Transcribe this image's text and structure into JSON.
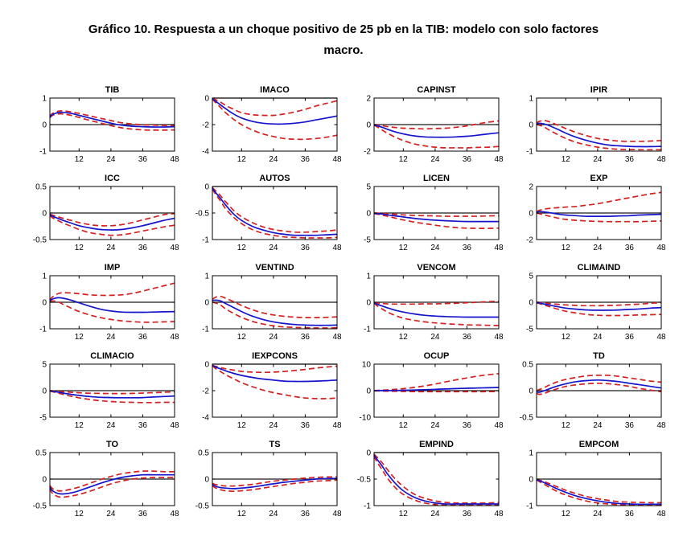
{
  "title": {
    "line1": "Gráfico 10. Respuesta a un choque positivo de 25 pb en la TIB: modelo con solo factores",
    "line2": "macro."
  },
  "colors": {
    "response_line": "#1414cc",
    "confidence_band": "#d42020",
    "zero_line": "#1a1a1a",
    "frame": "#000000",
    "background": "#ffffff"
  },
  "axes": {
    "x_range": [
      1,
      48
    ],
    "x_ticks": [
      12,
      24,
      36,
      48
    ],
    "x_samples": [
      1,
      2,
      4,
      6,
      9,
      12,
      16,
      20,
      24,
      28,
      32,
      36,
      40,
      44,
      48
    ]
  },
  "chart_data": [
    {
      "type": "line",
      "title": "TIB",
      "ylim": [
        -1,
        1
      ],
      "yticks": [
        1,
        0,
        -1
      ],
      "response": [
        0.28,
        0.38,
        0.45,
        0.46,
        0.42,
        0.35,
        0.25,
        0.15,
        0.05,
        -0.02,
        -0.06,
        -0.08,
        -0.09,
        -0.09,
        -0.08
      ],
      "upper": [
        0.3,
        0.42,
        0.5,
        0.52,
        0.48,
        0.42,
        0.33,
        0.24,
        0.15,
        0.07,
        0.02,
        -0.01,
        -0.02,
        -0.03,
        -0.03
      ],
      "lower": [
        0.26,
        0.35,
        0.4,
        0.4,
        0.35,
        0.27,
        0.16,
        0.06,
        -0.04,
        -0.12,
        -0.17,
        -0.2,
        -0.21,
        -0.21,
        -0.2
      ]
    },
    {
      "type": "line",
      "title": "IMACO",
      "ylim": [
        -4,
        0
      ],
      "yticks": [
        0,
        -2,
        -4
      ],
      "response": [
        -0.05,
        -0.2,
        -0.5,
        -0.8,
        -1.2,
        -1.5,
        -1.75,
        -1.9,
        -1.95,
        -1.95,
        -1.9,
        -1.8,
        -1.65,
        -1.5,
        -1.35
      ],
      "upper": [
        -0.03,
        -0.1,
        -0.3,
        -0.55,
        -0.85,
        -1.1,
        -1.25,
        -1.3,
        -1.3,
        -1.2,
        -1.05,
        -0.85,
        -0.6,
        -0.4,
        -0.2
      ],
      "lower": [
        -0.07,
        -0.3,
        -0.7,
        -1.1,
        -1.6,
        -2.0,
        -2.4,
        -2.7,
        -2.9,
        -3.05,
        -3.1,
        -3.1,
        -3.05,
        -2.95,
        -2.8
      ]
    },
    {
      "type": "line",
      "title": "CAPINST",
      "ylim": [
        -2,
        2
      ],
      "yticks": [
        2,
        0,
        -2
      ],
      "response": [
        -0.02,
        -0.08,
        -0.2,
        -0.35,
        -0.55,
        -0.7,
        -0.85,
        -0.93,
        -0.95,
        -0.95,
        -0.93,
        -0.88,
        -0.8,
        -0.7,
        -0.62
      ],
      "upper": [
        0.0,
        -0.02,
        -0.08,
        -0.15,
        -0.22,
        -0.27,
        -0.3,
        -0.32,
        -0.3,
        -0.27,
        -0.2,
        -0.1,
        0.05,
        0.18,
        0.28
      ],
      "lower": [
        -0.04,
        -0.15,
        -0.4,
        -0.65,
        -0.95,
        -1.2,
        -1.45,
        -1.6,
        -1.7,
        -1.75,
        -1.75,
        -1.75,
        -1.72,
        -1.7,
        -1.65
      ]
    },
    {
      "type": "line",
      "title": "IPIR",
      "ylim": [
        -1,
        1
      ],
      "yticks": [
        1,
        0,
        -1
      ],
      "response": [
        0.02,
        0.05,
        0.02,
        -0.05,
        -0.18,
        -0.32,
        -0.48,
        -0.6,
        -0.7,
        -0.77,
        -0.8,
        -0.82,
        -0.83,
        -0.83,
        -0.82
      ],
      "upper": [
        0.05,
        0.12,
        0.15,
        0.1,
        -0.02,
        -0.15,
        -0.3,
        -0.42,
        -0.52,
        -0.58,
        -0.62,
        -0.63,
        -0.63,
        -0.62,
        -0.6
      ],
      "lower": [
        0.0,
        -0.02,
        -0.1,
        -0.22,
        -0.38,
        -0.52,
        -0.67,
        -0.77,
        -0.85,
        -0.9,
        -0.93,
        -0.94,
        -0.95,
        -0.95,
        -0.95
      ]
    },
    {
      "type": "line",
      "title": "ICC",
      "ylim": [
        -0.5,
        0.5
      ],
      "yticks": [
        0.5,
        0,
        -0.5
      ],
      "response": [
        -0.03,
        -0.06,
        -0.1,
        -0.14,
        -0.19,
        -0.24,
        -0.28,
        -0.31,
        -0.32,
        -0.31,
        -0.28,
        -0.24,
        -0.19,
        -0.14,
        -0.1
      ],
      "upper": [
        -0.02,
        -0.04,
        -0.07,
        -0.1,
        -0.14,
        -0.18,
        -0.22,
        -0.24,
        -0.24,
        -0.22,
        -0.18,
        -0.13,
        -0.08,
        -0.03,
        -0.01
      ],
      "lower": [
        -0.05,
        -0.09,
        -0.14,
        -0.19,
        -0.25,
        -0.31,
        -0.37,
        -0.4,
        -0.42,
        -0.41,
        -0.38,
        -0.34,
        -0.3,
        -0.26,
        -0.23
      ]
    },
    {
      "type": "line",
      "title": "AUTOS",
      "ylim": [
        -1,
        0
      ],
      "yticks": [
        0,
        -0.5,
        -1
      ],
      "response": [
        -0.03,
        -0.1,
        -0.22,
        -0.35,
        -0.52,
        -0.64,
        -0.75,
        -0.82,
        -0.87,
        -0.9,
        -0.92,
        -0.92,
        -0.92,
        -0.91,
        -0.9
      ],
      "upper": [
        -0.02,
        -0.07,
        -0.17,
        -0.29,
        -0.45,
        -0.57,
        -0.68,
        -0.76,
        -0.81,
        -0.84,
        -0.86,
        -0.86,
        -0.85,
        -0.84,
        -0.82
      ],
      "lower": [
        -0.05,
        -0.13,
        -0.27,
        -0.42,
        -0.58,
        -0.7,
        -0.81,
        -0.88,
        -0.92,
        -0.95,
        -0.96,
        -0.97,
        -0.97,
        -0.97,
        -0.96
      ]
    },
    {
      "type": "line",
      "title": "LICEN",
      "ylim": [
        -5,
        5
      ],
      "yticks": [
        5,
        0,
        -5
      ],
      "response": [
        -0.05,
        -0.1,
        -0.2,
        -0.35,
        -0.55,
        -0.75,
        -1.0,
        -1.2,
        -1.35,
        -1.45,
        -1.55,
        -1.6,
        -1.6,
        -1.6,
        -1.6
      ],
      "upper": [
        0.0,
        -0.02,
        -0.08,
        -0.15,
        -0.25,
        -0.35,
        -0.45,
        -0.5,
        -0.55,
        -0.6,
        -0.6,
        -0.6,
        -0.6,
        -0.55,
        -0.5
      ],
      "lower": [
        -0.1,
        -0.2,
        -0.4,
        -0.6,
        -0.95,
        -1.3,
        -1.7,
        -2.0,
        -2.3,
        -2.55,
        -2.75,
        -2.85,
        -2.9,
        -2.9,
        -2.85
      ]
    },
    {
      "type": "line",
      "title": "EXP",
      "ylim": [
        -2,
        2
      ],
      "yticks": [
        2,
        0,
        -2
      ],
      "response": [
        0.05,
        0.1,
        0.08,
        0.02,
        -0.08,
        -0.15,
        -0.2,
        -0.25,
        -0.25,
        -0.25,
        -0.22,
        -0.2,
        -0.15,
        -0.12,
        -0.1
      ],
      "upper": [
        0.1,
        0.2,
        0.3,
        0.35,
        0.4,
        0.45,
        0.5,
        0.6,
        0.7,
        0.85,
        1.0,
        1.15,
        1.3,
        1.45,
        1.55
      ],
      "lower": [
        0.0,
        -0.05,
        -0.15,
        -0.25,
        -0.38,
        -0.48,
        -0.55,
        -0.6,
        -0.63,
        -0.65,
        -0.65,
        -0.65,
        -0.65,
        -0.62,
        -0.6
      ]
    },
    {
      "type": "line",
      "title": "IMP",
      "ylim": [
        -1,
        1
      ],
      "yticks": [
        1,
        0,
        -1
      ],
      "response": [
        0.05,
        0.12,
        0.17,
        0.15,
        0.08,
        -0.02,
        -0.15,
        -0.26,
        -0.33,
        -0.37,
        -0.38,
        -0.38,
        -0.37,
        -0.36,
        -0.35
      ],
      "upper": [
        0.08,
        0.2,
        0.32,
        0.36,
        0.35,
        0.32,
        0.28,
        0.26,
        0.26,
        0.28,
        0.33,
        0.42,
        0.52,
        0.62,
        0.72
      ],
      "lower": [
        0.02,
        0.05,
        0.02,
        -0.08,
        -0.22,
        -0.35,
        -0.48,
        -0.58,
        -0.65,
        -0.7,
        -0.73,
        -0.75,
        -0.75,
        -0.74,
        -0.73
      ]
    },
    {
      "type": "line",
      "title": "VENTIND",
      "ylim": [
        -1,
        1
      ],
      "yticks": [
        1,
        0,
        -1
      ],
      "response": [
        0.05,
        0.08,
        0.05,
        -0.05,
        -0.2,
        -0.35,
        -0.52,
        -0.65,
        -0.74,
        -0.8,
        -0.84,
        -0.86,
        -0.87,
        -0.87,
        -0.86
      ],
      "upper": [
        0.1,
        0.18,
        0.22,
        0.15,
        0.02,
        -0.12,
        -0.28,
        -0.4,
        -0.48,
        -0.53,
        -0.56,
        -0.58,
        -0.58,
        -0.57,
        -0.55
      ],
      "lower": [
        0.0,
        -0.02,
        -0.1,
        -0.25,
        -0.42,
        -0.57,
        -0.72,
        -0.82,
        -0.89,
        -0.93,
        -0.95,
        -0.96,
        -0.97,
        -0.97,
        -0.96
      ]
    },
    {
      "type": "line",
      "title": "VENCOM",
      "ylim": [
        -1,
        1
      ],
      "yticks": [
        1,
        0,
        -1
      ],
      "response": [
        -0.02,
        -0.07,
        -0.14,
        -0.21,
        -0.3,
        -0.37,
        -0.44,
        -0.49,
        -0.52,
        -0.54,
        -0.55,
        -0.56,
        -0.56,
        -0.56,
        -0.56
      ],
      "upper": [
        -0.01,
        -0.03,
        -0.05,
        -0.06,
        -0.07,
        -0.07,
        -0.07,
        -0.06,
        -0.06,
        -0.05,
        -0.04,
        -0.02,
        0.0,
        0.02,
        0.04
      ],
      "lower": [
        -0.03,
        -0.12,
        -0.25,
        -0.37,
        -0.5,
        -0.6,
        -0.68,
        -0.74,
        -0.78,
        -0.81,
        -0.83,
        -0.85,
        -0.86,
        -0.87,
        -0.88
      ]
    },
    {
      "type": "line",
      "title": "CLIMAIND",
      "ylim": [
        -5,
        5
      ],
      "yticks": [
        5,
        0,
        -5
      ],
      "response": [
        -0.05,
        -0.15,
        -0.35,
        -0.55,
        -0.85,
        -1.1,
        -1.3,
        -1.45,
        -1.5,
        -1.5,
        -1.45,
        -1.35,
        -1.25,
        -1.1,
        -1.0
      ],
      "upper": [
        0.0,
        -0.05,
        -0.15,
        -0.25,
        -0.4,
        -0.5,
        -0.6,
        -0.65,
        -0.65,
        -0.6,
        -0.55,
        -0.45,
        -0.35,
        -0.2,
        -0.1
      ],
      "lower": [
        -0.1,
        -0.25,
        -0.55,
        -0.85,
        -1.3,
        -1.7,
        -2.05,
        -2.3,
        -2.45,
        -2.5,
        -2.5,
        -2.45,
        -2.4,
        -2.35,
        -2.3
      ]
    },
    {
      "type": "line",
      "title": "CLIMACIO",
      "ylim": [
        -5,
        5
      ],
      "yticks": [
        5,
        0,
        -5
      ],
      "response": [
        -0.05,
        -0.12,
        -0.28,
        -0.45,
        -0.7,
        -0.9,
        -1.1,
        -1.25,
        -1.3,
        -1.33,
        -1.33,
        -1.3,
        -1.2,
        -1.1,
        -1.0
      ],
      "upper": [
        -0.02,
        -0.06,
        -0.12,
        -0.2,
        -0.3,
        -0.4,
        -0.48,
        -0.52,
        -0.55,
        -0.55,
        -0.52,
        -0.45,
        -0.38,
        -0.3,
        -0.22
      ],
      "lower": [
        -0.08,
        -0.2,
        -0.45,
        -0.7,
        -1.05,
        -1.35,
        -1.65,
        -1.9,
        -2.05,
        -2.15,
        -2.2,
        -2.25,
        -2.25,
        -2.2,
        -2.2
      ]
    },
    {
      "type": "line",
      "title": "IEXPCONS",
      "ylim": [
        -4,
        0
      ],
      "yticks": [
        0,
        -2,
        -4
      ],
      "response": [
        -0.1,
        -0.2,
        -0.35,
        -0.5,
        -0.7,
        -0.85,
        -1.0,
        -1.12,
        -1.2,
        -1.28,
        -1.3,
        -1.3,
        -1.28,
        -1.25,
        -1.2
      ],
      "upper": [
        -0.08,
        -0.15,
        -0.25,
        -0.35,
        -0.45,
        -0.55,
        -0.6,
        -0.62,
        -0.6,
        -0.55,
        -0.48,
        -0.4,
        -0.3,
        -0.22,
        -0.15
      ],
      "lower": [
        -0.12,
        -0.3,
        -0.55,
        -0.8,
        -1.1,
        -1.4,
        -1.7,
        -1.95,
        -2.15,
        -2.3,
        -2.45,
        -2.55,
        -2.6,
        -2.6,
        -2.55
      ]
    },
    {
      "type": "line",
      "title": "OCUP",
      "ylim": [
        -10,
        10
      ],
      "yticks": [
        10,
        0,
        -10
      ],
      "response": [
        0.0,
        0.0,
        0.02,
        0.05,
        0.1,
        0.15,
        0.25,
        0.35,
        0.5,
        0.65,
        0.8,
        0.9,
        1.0,
        1.1,
        1.2
      ],
      "upper": [
        0.05,
        0.1,
        0.2,
        0.3,
        0.5,
        0.75,
        1.2,
        1.8,
        2.5,
        3.3,
        4.1,
        4.8,
        5.5,
        6.0,
        6.4
      ],
      "lower": [
        -0.05,
        -0.1,
        -0.15,
        -0.2,
        -0.25,
        -0.3,
        -0.35,
        -0.38,
        -0.4,
        -0.4,
        -0.4,
        -0.4,
        -0.38,
        -0.36,
        -0.35
      ]
    },
    {
      "type": "line",
      "title": "TD",
      "ylim": [
        -0.5,
        0.5
      ],
      "yticks": [
        0.5,
        0,
        -0.5
      ],
      "response": [
        -0.02,
        -0.03,
        0.0,
        0.04,
        0.09,
        0.13,
        0.17,
        0.19,
        0.2,
        0.19,
        0.17,
        0.14,
        0.11,
        0.08,
        0.05
      ],
      "upper": [
        0.0,
        0.02,
        0.06,
        0.11,
        0.17,
        0.21,
        0.25,
        0.28,
        0.29,
        0.29,
        0.27,
        0.24,
        0.21,
        0.18,
        0.16
      ],
      "lower": [
        -0.05,
        -0.07,
        -0.05,
        -0.01,
        0.04,
        0.08,
        0.11,
        0.13,
        0.14,
        0.13,
        0.11,
        0.08,
        0.04,
        0.01,
        -0.02
      ]
    },
    {
      "type": "line",
      "title": "TO",
      "ylim": [
        -0.5,
        0.5
      ],
      "yticks": [
        0.5,
        0,
        -0.5
      ],
      "response": [
        -0.15,
        -0.22,
        -0.27,
        -0.28,
        -0.26,
        -0.22,
        -0.15,
        -0.08,
        -0.02,
        0.03,
        0.06,
        0.08,
        0.08,
        0.08,
        0.08
      ],
      "upper": [
        -0.12,
        -0.18,
        -0.22,
        -0.22,
        -0.19,
        -0.15,
        -0.08,
        -0.01,
        0.05,
        0.1,
        0.13,
        0.15,
        0.15,
        0.14,
        0.14
      ],
      "lower": [
        -0.18,
        -0.27,
        -0.33,
        -0.34,
        -0.32,
        -0.29,
        -0.23,
        -0.16,
        -0.09,
        -0.04,
        0.0,
        0.02,
        0.03,
        0.03,
        0.03
      ]
    },
    {
      "type": "line",
      "title": "TS",
      "ylim": [
        -0.5,
        0.5
      ],
      "yticks": [
        0.5,
        0,
        -0.5
      ],
      "response": [
        -0.1,
        -0.13,
        -0.16,
        -0.17,
        -0.18,
        -0.17,
        -0.15,
        -0.12,
        -0.09,
        -0.06,
        -0.04,
        -0.02,
        0.0,
        0.01,
        0.01
      ],
      "upper": [
        -0.08,
        -0.1,
        -0.12,
        -0.13,
        -0.13,
        -0.12,
        -0.1,
        -0.07,
        -0.04,
        -0.02,
        0.0,
        0.02,
        0.03,
        0.04,
        0.04
      ],
      "lower": [
        -0.12,
        -0.16,
        -0.2,
        -0.22,
        -0.23,
        -0.22,
        -0.2,
        -0.17,
        -0.14,
        -0.11,
        -0.08,
        -0.06,
        -0.04,
        -0.03,
        -0.02
      ]
    },
    {
      "type": "line",
      "title": "EMPIND",
      "ylim": [
        -1,
        0
      ],
      "yticks": [
        0,
        -0.5,
        -1
      ],
      "response": [
        -0.05,
        -0.12,
        -0.25,
        -0.4,
        -0.58,
        -0.72,
        -0.84,
        -0.91,
        -0.95,
        -0.97,
        -0.97,
        -0.97,
        -0.97,
        -0.97,
        -0.97
      ],
      "upper": [
        -0.03,
        -0.08,
        -0.19,
        -0.32,
        -0.5,
        -0.64,
        -0.78,
        -0.86,
        -0.91,
        -0.94,
        -0.95,
        -0.95,
        -0.95,
        -0.95,
        -0.94
      ],
      "lower": [
        -0.07,
        -0.17,
        -0.32,
        -0.48,
        -0.66,
        -0.79,
        -0.89,
        -0.95,
        -0.98,
        -0.99,
        -0.99,
        -0.99,
        -0.99,
        -0.99,
        -0.98
      ]
    },
    {
      "type": "line",
      "title": "EMPCOM",
      "ylim": [
        -1,
        1
      ],
      "yticks": [
        1,
        0,
        -1
      ],
      "response": [
        -0.02,
        -0.06,
        -0.14,
        -0.24,
        -0.38,
        -0.5,
        -0.64,
        -0.74,
        -0.82,
        -0.88,
        -0.92,
        -0.94,
        -0.95,
        -0.95,
        -0.95
      ],
      "upper": [
        -0.01,
        -0.04,
        -0.1,
        -0.18,
        -0.3,
        -0.42,
        -0.55,
        -0.66,
        -0.74,
        -0.8,
        -0.85,
        -0.87,
        -0.88,
        -0.89,
        -0.89
      ],
      "lower": [
        -0.03,
        -0.09,
        -0.2,
        -0.32,
        -0.48,
        -0.6,
        -0.73,
        -0.83,
        -0.9,
        -0.94,
        -0.96,
        -0.97,
        -0.98,
        -0.98,
        -0.98
      ]
    }
  ]
}
